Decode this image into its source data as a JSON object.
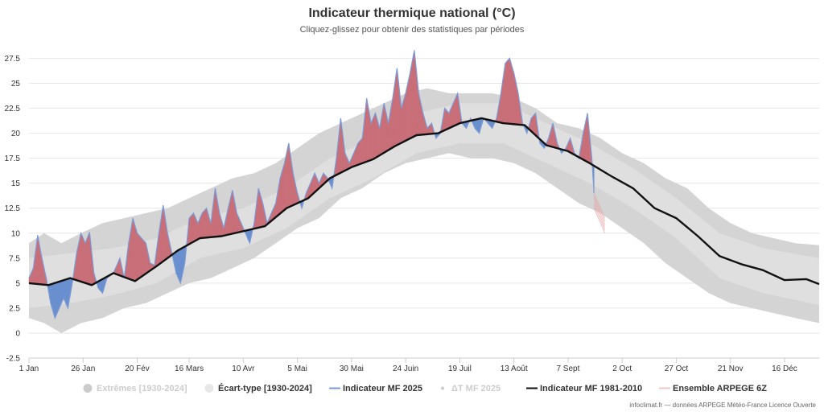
{
  "chart_data": {
    "type": "area",
    "title": "Indicateur thermique national (°C)",
    "subtitle": "Cliquez-glissez pour obtenir des statistiques par périodes",
    "credits": "infoclimat.fr — données ARPEGE Météo-France Licence Ouverte",
    "ylim": [
      -2.5,
      28.5
    ],
    "yticks": [
      "-2.5",
      "0",
      "2.5",
      "5",
      "7.5",
      "10",
      "12.5",
      "15",
      "17.5",
      "20",
      "22.5",
      "25",
      "27.5"
    ],
    "xlim": [
      1,
      366
    ],
    "xticks": [
      {
        "day": 1,
        "label": "1 Jan"
      },
      {
        "day": 26,
        "label": "26 Jan"
      },
      {
        "day": 51,
        "label": "20 Fév"
      },
      {
        "day": 75,
        "label": "16 Mars"
      },
      {
        "day": 100,
        "label": "10 Avr"
      },
      {
        "day": 125,
        "label": "5 Mai"
      },
      {
        "day": 150,
        "label": "30 Mai"
      },
      {
        "day": 175,
        "label": "24 Juin"
      },
      {
        "day": 200,
        "label": "19 Juil"
      },
      {
        "day": 225,
        "label": "13 Août"
      },
      {
        "day": 250,
        "label": "7 Sept"
      },
      {
        "day": 275,
        "label": "2 Oct"
      },
      {
        "day": 300,
        "label": "27 Oct"
      },
      {
        "day": 325,
        "label": "21 Nov"
      },
      {
        "day": 350,
        "label": "16 Déc"
      }
    ],
    "colors": {
      "extremes": "#d4d4d4",
      "stddev": "#e8e8e8",
      "warm_anomaly": "#c96f78",
      "cold_anomaly": "#6a8fcf",
      "indicator_2025": "#7c9bd6",
      "normal_line": "#111111",
      "arpege": "#e6a0a0"
    },
    "legend": [
      {
        "label": "Extrêmes [1930-2024]",
        "symbol": "circle",
        "color": "#cccccc",
        "active": false
      },
      {
        "label": "Écart-type [1930-2024]",
        "symbol": "circle",
        "color": "#e8e8e8",
        "active": true
      },
      {
        "label": "Indicateur MF 2025",
        "symbol": "line",
        "color": "#7c9bd6",
        "active": true
      },
      {
        "label": "ΔT MF 2025",
        "symbol": "dot",
        "color": "#cccccc",
        "active": false
      },
      {
        "label": "Indicateur MF 1981-2010",
        "symbol": "line",
        "color": "#111111",
        "active": true
      },
      {
        "label": "Ensemble ARPEGE 6Z",
        "symbol": "line",
        "color": "#f0c8c8",
        "active": true
      }
    ],
    "normal_1981_2010": [
      {
        "day": 1,
        "value": 5.0
      },
      {
        "day": 10,
        "value": 4.8
      },
      {
        "day": 20,
        "value": 5.5
      },
      {
        "day": 30,
        "value": 4.8
      },
      {
        "day": 40,
        "value": 6.0
      },
      {
        "day": 50,
        "value": 5.2
      },
      {
        "day": 60,
        "value": 6.7
      },
      {
        "day": 70,
        "value": 8.3
      },
      {
        "day": 80,
        "value": 9.5
      },
      {
        "day": 90,
        "value": 9.7
      },
      {
        "day": 100,
        "value": 10.2
      },
      {
        "day": 110,
        "value": 10.7
      },
      {
        "day": 120,
        "value": 12.5
      },
      {
        "day": 130,
        "value": 13.5
      },
      {
        "day": 140,
        "value": 15.5
      },
      {
        "day": 150,
        "value": 16.6
      },
      {
        "day": 160,
        "value": 17.4
      },
      {
        "day": 170,
        "value": 18.7
      },
      {
        "day": 180,
        "value": 19.8
      },
      {
        "day": 190,
        "value": 20.0
      },
      {
        "day": 200,
        "value": 21.0
      },
      {
        "day": 210,
        "value": 21.5
      },
      {
        "day": 220,
        "value": 21.0
      },
      {
        "day": 230,
        "value": 20.8
      },
      {
        "day": 240,
        "value": 18.8
      },
      {
        "day": 250,
        "value": 18.2
      },
      {
        "day": 260,
        "value": 17.0
      },
      {
        "day": 270,
        "value": 15.7
      },
      {
        "day": 280,
        "value": 14.5
      },
      {
        "day": 290,
        "value": 12.5
      },
      {
        "day": 300,
        "value": 11.5
      },
      {
        "day": 310,
        "value": 9.7
      },
      {
        "day": 320,
        "value": 7.7
      },
      {
        "day": 330,
        "value": 6.9
      },
      {
        "day": 340,
        "value": 6.3
      },
      {
        "day": 350,
        "value": 5.3
      },
      {
        "day": 360,
        "value": 5.4
      },
      {
        "day": 366,
        "value": 4.9
      }
    ],
    "indicator_2025": [
      {
        "day": 1,
        "value": 5.5
      },
      {
        "day": 3,
        "value": 6.5
      },
      {
        "day": 5,
        "value": 9.8
      },
      {
        "day": 7,
        "value": 7.5
      },
      {
        "day": 9,
        "value": 5.5
      },
      {
        "day": 11,
        "value": 3.0
      },
      {
        "day": 13,
        "value": 1.5
      },
      {
        "day": 15,
        "value": 2.5
      },
      {
        "day": 17,
        "value": 3.5
      },
      {
        "day": 19,
        "value": 2.5
      },
      {
        "day": 21,
        "value": 5.0
      },
      {
        "day": 23,
        "value": 8.0
      },
      {
        "day": 25,
        "value": 10.0
      },
      {
        "day": 27,
        "value": 9.0
      },
      {
        "day": 29,
        "value": 10.1
      },
      {
        "day": 31,
        "value": 6.0
      },
      {
        "day": 33,
        "value": 4.5
      },
      {
        "day": 35,
        "value": 4.0
      },
      {
        "day": 37,
        "value": 5.5
      },
      {
        "day": 40,
        "value": 6.0
      },
      {
        "day": 43,
        "value": 7.5
      },
      {
        "day": 45,
        "value": 5.5
      },
      {
        "day": 47,
        "value": 9.0
      },
      {
        "day": 49,
        "value": 11.5
      },
      {
        "day": 51,
        "value": 10.0
      },
      {
        "day": 53,
        "value": 9.5
      },
      {
        "day": 55,
        "value": 9.0
      },
      {
        "day": 57,
        "value": 7.0
      },
      {
        "day": 59,
        "value": 6.8
      },
      {
        "day": 61,
        "value": 10.0
      },
      {
        "day": 63,
        "value": 12.8
      },
      {
        "day": 65,
        "value": 10.0
      },
      {
        "day": 67,
        "value": 8.0
      },
      {
        "day": 69,
        "value": 6.0
      },
      {
        "day": 71,
        "value": 5.0
      },
      {
        "day": 73,
        "value": 7.0
      },
      {
        "day": 75,
        "value": 11.5
      },
      {
        "day": 77,
        "value": 12.0
      },
      {
        "day": 79,
        "value": 11.0
      },
      {
        "day": 81,
        "value": 12.0
      },
      {
        "day": 83,
        "value": 12.5
      },
      {
        "day": 85,
        "value": 11.0
      },
      {
        "day": 87,
        "value": 14.5
      },
      {
        "day": 89,
        "value": 12.0
      },
      {
        "day": 91,
        "value": 10.5
      },
      {
        "day": 93,
        "value": 12.5
      },
      {
        "day": 95,
        "value": 14.3
      },
      {
        "day": 97,
        "value": 12.0
      },
      {
        "day": 99,
        "value": 11.0
      },
      {
        "day": 101,
        "value": 10.0
      },
      {
        "day": 103,
        "value": 9.0
      },
      {
        "day": 105,
        "value": 11.0
      },
      {
        "day": 107,
        "value": 14.5
      },
      {
        "day": 109,
        "value": 13.0
      },
      {
        "day": 111,
        "value": 11.0
      },
      {
        "day": 113,
        "value": 12.0
      },
      {
        "day": 115,
        "value": 13.0
      },
      {
        "day": 117,
        "value": 15.5
      },
      {
        "day": 119,
        "value": 17.0
      },
      {
        "day": 121,
        "value": 19.0
      },
      {
        "day": 123,
        "value": 16.0
      },
      {
        "day": 125,
        "value": 14.0
      },
      {
        "day": 127,
        "value": 12.5
      },
      {
        "day": 129,
        "value": 14.0
      },
      {
        "day": 131,
        "value": 15.0
      },
      {
        "day": 133,
        "value": 16.0
      },
      {
        "day": 135,
        "value": 15.0
      },
      {
        "day": 137,
        "value": 16.0
      },
      {
        "day": 139,
        "value": 15.5
      },
      {
        "day": 141,
        "value": 14.5
      },
      {
        "day": 143,
        "value": 17.5
      },
      {
        "day": 145,
        "value": 21.5
      },
      {
        "day": 147,
        "value": 18.0
      },
      {
        "day": 149,
        "value": 17.0
      },
      {
        "day": 151,
        "value": 18.0
      },
      {
        "day": 153,
        "value": 19.0
      },
      {
        "day": 155,
        "value": 19.5
      },
      {
        "day": 157,
        "value": 23.5
      },
      {
        "day": 159,
        "value": 21.0
      },
      {
        "day": 161,
        "value": 22.0
      },
      {
        "day": 163,
        "value": 20.5
      },
      {
        "day": 165,
        "value": 23.0
      },
      {
        "day": 167,
        "value": 21.0
      },
      {
        "day": 169,
        "value": 23.5
      },
      {
        "day": 171,
        "value": 26.5
      },
      {
        "day": 173,
        "value": 22.5
      },
      {
        "day": 175,
        "value": 24.0
      },
      {
        "day": 177,
        "value": 26.0
      },
      {
        "day": 179,
        "value": 28.3
      },
      {
        "day": 181,
        "value": 24.0
      },
      {
        "day": 183,
        "value": 22.0
      },
      {
        "day": 185,
        "value": 20.5
      },
      {
        "day": 187,
        "value": 21.0
      },
      {
        "day": 189,
        "value": 19.5
      },
      {
        "day": 191,
        "value": 20.0
      },
      {
        "day": 193,
        "value": 22.5
      },
      {
        "day": 195,
        "value": 22.0
      },
      {
        "day": 197,
        "value": 23.0
      },
      {
        "day": 199,
        "value": 24.0
      },
      {
        "day": 201,
        "value": 21.0
      },
      {
        "day": 203,
        "value": 20.5
      },
      {
        "day": 205,
        "value": 21.5
      },
      {
        "day": 207,
        "value": 20.5
      },
      {
        "day": 209,
        "value": 20.0
      },
      {
        "day": 211,
        "value": 21.5
      },
      {
        "day": 213,
        "value": 21.0
      },
      {
        "day": 215,
        "value": 20.5
      },
      {
        "day": 217,
        "value": 21.5
      },
      {
        "day": 219,
        "value": 24.0
      },
      {
        "day": 221,
        "value": 27.0
      },
      {
        "day": 223,
        "value": 27.5
      },
      {
        "day": 225,
        "value": 26.0
      },
      {
        "day": 227,
        "value": 24.0
      },
      {
        "day": 229,
        "value": 21.0
      },
      {
        "day": 231,
        "value": 20.0
      },
      {
        "day": 233,
        "value": 21.5
      },
      {
        "day": 235,
        "value": 22.0
      },
      {
        "day": 237,
        "value": 19.0
      },
      {
        "day": 239,
        "value": 18.5
      },
      {
        "day": 241,
        "value": 19.5
      },
      {
        "day": 243,
        "value": 21.0
      },
      {
        "day": 245,
        "value": 19.0
      },
      {
        "day": 247,
        "value": 18.0
      },
      {
        "day": 249,
        "value": 18.5
      },
      {
        "day": 251,
        "value": 19.5
      },
      {
        "day": 253,
        "value": 18.0
      },
      {
        "day": 255,
        "value": 17.5
      },
      {
        "day": 257,
        "value": 20.0
      },
      {
        "day": 259,
        "value": 22.0
      },
      {
        "day": 261,
        "value": 17.5
      },
      {
        "day": 262,
        "value": 14.0
      }
    ],
    "arpege_ensemble": [
      {
        "day": 262,
        "min": 12.5,
        "max": 14.0
      },
      {
        "day": 264,
        "min": 11.5,
        "max": 13.0
      },
      {
        "day": 266,
        "min": 10.5,
        "max": 12.0
      },
      {
        "day": 267,
        "min": 10.0,
        "max": 11.5
      }
    ],
    "stddev_band": [
      {
        "day": 1,
        "low": 2.5,
        "high": 7.5
      },
      {
        "day": 20,
        "low": 3.0,
        "high": 8.0
      },
      {
        "day": 40,
        "low": 3.8,
        "high": 8.5
      },
      {
        "day": 60,
        "low": 5.0,
        "high": 9.5
      },
      {
        "day": 80,
        "low": 7.5,
        "high": 11.5
      },
      {
        "day": 100,
        "low": 8.5,
        "high": 12.5
      },
      {
        "day": 120,
        "low": 10.5,
        "high": 14.5
      },
      {
        "day": 140,
        "low": 13.5,
        "high": 17.5
      },
      {
        "day": 160,
        "low": 15.5,
        "high": 19.5
      },
      {
        "day": 180,
        "low": 18.0,
        "high": 22.0
      },
      {
        "day": 200,
        "low": 19.0,
        "high": 23.0
      },
      {
        "day": 220,
        "low": 19.0,
        "high": 23.0
      },
      {
        "day": 240,
        "low": 17.0,
        "high": 21.0
      },
      {
        "day": 260,
        "low": 15.0,
        "high": 19.0
      },
      {
        "day": 280,
        "low": 12.5,
        "high": 16.5
      },
      {
        "day": 300,
        "low": 9.5,
        "high": 13.5
      },
      {
        "day": 320,
        "low": 5.5,
        "high": 10.0
      },
      {
        "day": 340,
        "low": 4.0,
        "high": 8.5
      },
      {
        "day": 366,
        "low": 2.8,
        "high": 7.5
      }
    ],
    "extremes_band": [
      {
        "day": 1,
        "low": 1.5,
        "high": 9.0
      },
      {
        "day": 8,
        "low": 1.0,
        "high": 10.0
      },
      {
        "day": 16,
        "low": 0.0,
        "high": 9.0
      },
      {
        "day": 25,
        "low": 1.0,
        "high": 10.0
      },
      {
        "day": 35,
        "low": 1.5,
        "high": 11.0
      },
      {
        "day": 45,
        "low": 2.5,
        "high": 11.5
      },
      {
        "day": 55,
        "low": 3.0,
        "high": 12.0
      },
      {
        "day": 65,
        "low": 4.0,
        "high": 12.5
      },
      {
        "day": 75,
        "low": 5.0,
        "high": 13.5
      },
      {
        "day": 85,
        "low": 5.5,
        "high": 14.5
      },
      {
        "day": 95,
        "low": 6.5,
        "high": 15.5
      },
      {
        "day": 105,
        "low": 7.5,
        "high": 16.0
      },
      {
        "day": 115,
        "low": 9.0,
        "high": 17.0
      },
      {
        "day": 125,
        "low": 10.5,
        "high": 18.5
      },
      {
        "day": 135,
        "low": 11.5,
        "high": 20.0
      },
      {
        "day": 145,
        "low": 13.5,
        "high": 21.0
      },
      {
        "day": 155,
        "low": 14.5,
        "high": 22.0
      },
      {
        "day": 165,
        "low": 16.0,
        "high": 23.0
      },
      {
        "day": 175,
        "low": 17.0,
        "high": 24.0
      },
      {
        "day": 185,
        "low": 17.5,
        "high": 24.5
      },
      {
        "day": 195,
        "low": 18.0,
        "high": 24.0
      },
      {
        "day": 205,
        "low": 17.5,
        "high": 24.0
      },
      {
        "day": 215,
        "low": 17.5,
        "high": 24.0
      },
      {
        "day": 225,
        "low": 17.0,
        "high": 23.5
      },
      {
        "day": 235,
        "low": 16.0,
        "high": 22.5
      },
      {
        "day": 245,
        "low": 14.5,
        "high": 21.0
      },
      {
        "day": 255,
        "low": 13.0,
        "high": 20.5
      },
      {
        "day": 265,
        "low": 12.0,
        "high": 19.5
      },
      {
        "day": 275,
        "low": 10.5,
        "high": 18.0
      },
      {
        "day": 285,
        "low": 9.0,
        "high": 17.0
      },
      {
        "day": 295,
        "low": 7.0,
        "high": 15.5
      },
      {
        "day": 305,
        "low": 5.5,
        "high": 14.5
      },
      {
        "day": 315,
        "low": 4.0,
        "high": 12.5
      },
      {
        "day": 325,
        "low": 3.0,
        "high": 11.0
      },
      {
        "day": 335,
        "low": 2.5,
        "high": 10.0
      },
      {
        "day": 345,
        "low": 2.0,
        "high": 9.5
      },
      {
        "day": 355,
        "low": 1.5,
        "high": 9.0
      },
      {
        "day": 366,
        "low": 1.0,
        "high": 8.8
      }
    ]
  }
}
